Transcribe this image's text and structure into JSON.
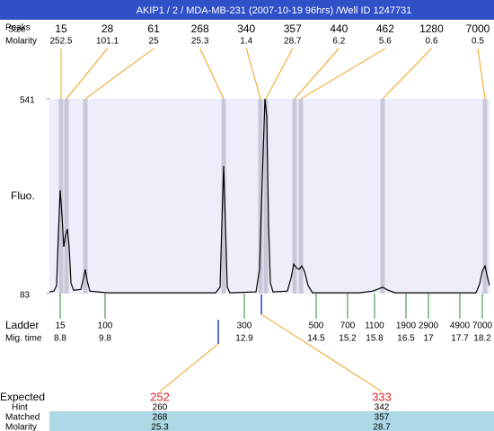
{
  "chart_data": {
    "type": "line",
    "title": "AKIP1 / 2 / MDA-MB-231 (2007-10-19 96hrs) /Well ID 1247731",
    "ylabel": "Fluo.",
    "ylim": [
      83,
      541
    ],
    "yticks": [
      83,
      541
    ],
    "xlim": [
      8.56,
      18.36
    ],
    "x": [
      8.56,
      8.66,
      8.72,
      8.76,
      8.8,
      8.84,
      8.88,
      8.92,
      8.96,
      9.0,
      9.04,
      9.1,
      9.26,
      9.32,
      9.36,
      9.4,
      9.46,
      9.86,
      12.26,
      12.36,
      12.4,
      12.44,
      12.48,
      12.52,
      12.58,
      13.16,
      13.24,
      13.28,
      13.32,
      13.36,
      13.4,
      13.44,
      13.48,
      13.54,
      13.86,
      13.94,
      14.0,
      14.06,
      14.12,
      14.18,
      14.24,
      14.32,
      14.42,
      15.46,
      15.76,
      15.86,
      15.98,
      16.1,
      16.26,
      18.06,
      18.14,
      18.2,
      18.26,
      18.32,
      18.36
    ],
    "series": [
      {
        "color": "#000000",
        "values": [
          87,
          89,
          102,
          224,
          326,
          267,
          193,
          220,
          235,
          193,
          108,
          91,
          93,
          119,
          140,
          114,
          89,
          85,
          85,
          98,
          246,
          383,
          246,
          98,
          85,
          87,
          140,
          288,
          415,
          541,
          499,
          246,
          108,
          87,
          89,
          119,
          152,
          144,
          140,
          148,
          136,
          102,
          85,
          85,
          89,
          93,
          98,
          91,
          85,
          85,
          106,
          136,
          148,
          119,
          102
        ]
      }
    ],
    "peaks": {
      "label": "Peaks",
      "size_label": "Size",
      "molarity_label": "Molarity",
      "sizes": [
        15,
        28,
        61,
        268,
        340,
        357,
        440,
        462,
        1280,
        7000
      ],
      "molarity": [
        252.5,
        101.1,
        25,
        25.3,
        1.4,
        28.7,
        6.2,
        5.6,
        0.6,
        0.5
      ],
      "mig_time": [
        8.82,
        8.94,
        9.36,
        12.44,
        13.26,
        13.38,
        14.02,
        14.16,
        15.98,
        18.26
      ],
      "color": "#f0a020"
    },
    "ladder": {
      "label": "Ladder",
      "mig_label": "Mig. time",
      "sizes": [
        15,
        100,
        300,
        500,
        700,
        1100,
        1900,
        2900,
        4900,
        7000
      ],
      "mig_time": [
        8.8,
        9.8,
        12.9,
        14.5,
        15.2,
        15.8,
        16.5,
        17,
        17.7,
        18.2
      ],
      "color": "#2a8a2a"
    },
    "expected": {
      "label": "Expected",
      "values": [
        252,
        333
      ],
      "mig_time": [
        12.32,
        13.28
      ],
      "hint_label": "Hint",
      "hint": [
        260,
        342
      ],
      "matched_label": "Matched",
      "matched": [
        268,
        357
      ],
      "molarity_label": "Molarity",
      "molarity": [
        25.3,
        28.7
      ]
    }
  }
}
